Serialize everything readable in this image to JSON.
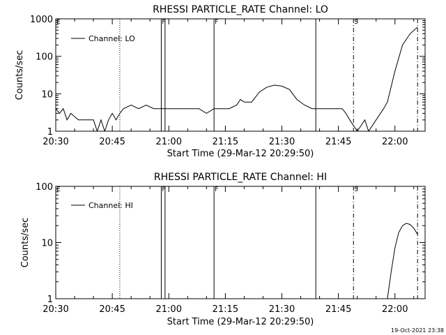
{
  "footer": {
    "timestamp": "19-Oct-2021 23:38"
  },
  "chart_data": [
    {
      "type": "line",
      "title": "RHESSI PARTICLE_RATE Channel: LO",
      "xlabel": "Start Time (29-Mar-12 20:29:50)",
      "ylabel": "Counts/sec",
      "xlim": [
        "20:30",
        "22:08"
      ],
      "ylim": [
        1,
        1000
      ],
      "yscale": "log",
      "x_ticks": [
        "20:30",
        "20:45",
        "21:00",
        "21:15",
        "21:30",
        "21:45",
        "22:00"
      ],
      "y_ticks": [
        "1",
        "10",
        "100",
        "1000"
      ],
      "legend": {
        "placement": "top-left",
        "entries": [
          "Channel: LO"
        ]
      },
      "markers": [
        {
          "time": "20:30",
          "style": "solid",
          "label": "E"
        },
        {
          "time": "20:47",
          "style": "dotted",
          "label": ""
        },
        {
          "time": "20:58",
          "style": "solid",
          "label": "F"
        },
        {
          "time": "20:59",
          "style": "solid",
          "label": ""
        },
        {
          "time": "21:12",
          "style": "solid",
          "label": "F"
        },
        {
          "time": "21:39",
          "style": "solid",
          "label": ""
        },
        {
          "time": "21:49",
          "style": "dashdot",
          "label": "S"
        },
        {
          "time": "22:06",
          "style": "dashdot",
          "label": ""
        }
      ],
      "series": [
        {
          "name": "Channel: LO",
          "x": [
            "20:30",
            "20:31",
            "20:32",
            "20:33",
            "20:34",
            "20:36",
            "20:40",
            "20:41",
            "20:42",
            "20:43",
            "20:44",
            "20:45",
            "20:46",
            "20:47",
            "20:48",
            "20:50",
            "20:52",
            "20:54",
            "20:56",
            "20:58",
            "21:00",
            "21:05",
            "21:08",
            "21:10",
            "21:12",
            "21:14",
            "21:16",
            "21:18",
            "21:19",
            "21:20",
            "21:22",
            "21:24",
            "21:26",
            "21:28",
            "21:30",
            "21:32",
            "21:34",
            "21:36",
            "21:38",
            "21:39",
            "21:42",
            "21:44",
            "21:46",
            "21:47",
            "21:48",
            "21:50",
            "21:52",
            "21:53",
            "21:55",
            "21:57",
            "21:58",
            "22:00",
            "22:02",
            "22:04",
            "22:06"
          ],
          "values": [
            4,
            3,
            4,
            2,
            3,
            2,
            2,
            1,
            2,
            1,
            2,
            3,
            2,
            3,
            4,
            5,
            4,
            5,
            4,
            4,
            4,
            4,
            4,
            3,
            4,
            4,
            4,
            5,
            7,
            6,
            6,
            11,
            15,
            17,
            16,
            13,
            7,
            5,
            4,
            4,
            4,
            4,
            4,
            3,
            2,
            1,
            2,
            1,
            2,
            4,
            6,
            40,
            200,
            400,
            600
          ]
        }
      ]
    },
    {
      "type": "line",
      "title": "RHESSI PARTICLE_RATE Channel: HI",
      "xlabel": "Start Time (29-Mar-12 20:29:50)",
      "ylabel": "Counts/sec",
      "xlim": [
        "20:30",
        "22:08"
      ],
      "ylim": [
        1,
        100
      ],
      "yscale": "log",
      "x_ticks": [
        "20:30",
        "20:45",
        "21:00",
        "21:15",
        "21:30",
        "21:45",
        "22:00"
      ],
      "y_ticks": [
        "1",
        "10",
        "100"
      ],
      "legend": {
        "placement": "top-left",
        "entries": [
          "Channel: HI"
        ]
      },
      "markers": [
        {
          "time": "20:30",
          "style": "solid",
          "label": "E"
        },
        {
          "time": "20:47",
          "style": "dotted",
          "label": ""
        },
        {
          "time": "20:58",
          "style": "solid",
          "label": "F"
        },
        {
          "time": "20:59",
          "style": "solid",
          "label": ""
        },
        {
          "time": "21:12",
          "style": "solid",
          "label": "F"
        },
        {
          "time": "21:39",
          "style": "solid",
          "label": ""
        },
        {
          "time": "21:49",
          "style": "dashdot",
          "label": "S"
        },
        {
          "time": "22:06",
          "style": "dashdot",
          "label": ""
        }
      ],
      "series": [
        {
          "name": "Channel: HI",
          "x": [
            "21:58",
            "21:59",
            "22:00",
            "22:01",
            "22:02",
            "22:03",
            "22:04",
            "22:05",
            "22:06"
          ],
          "values": [
            1,
            3,
            8,
            15,
            20,
            22,
            21,
            18,
            14
          ]
        }
      ]
    }
  ]
}
